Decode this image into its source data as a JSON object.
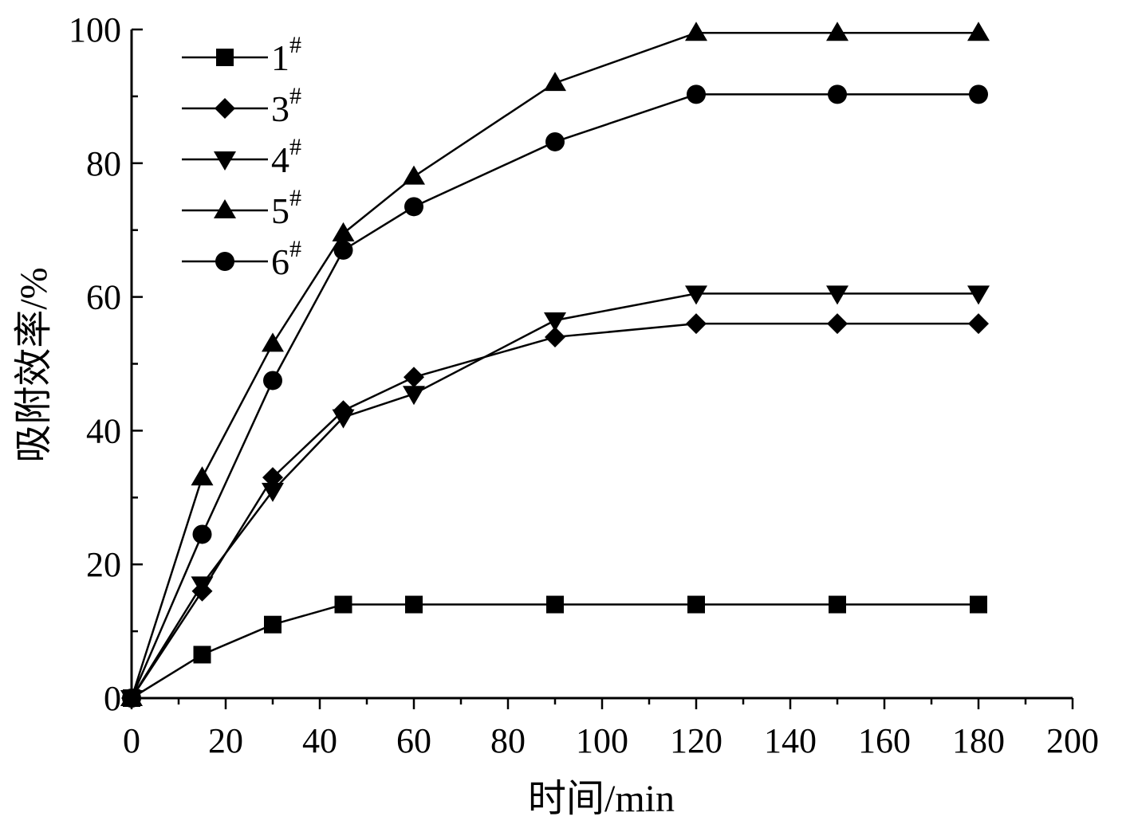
{
  "chart_data": {
    "type": "line",
    "xlabel": "时间/min",
    "ylabel": "吸附效率/%",
    "xlim": [
      0,
      200
    ],
    "ylim": [
      0,
      100
    ],
    "xticks": [
      "0",
      "20",
      "40",
      "60",
      "80",
      "100",
      "120",
      "140",
      "160",
      "180",
      "200"
    ],
    "yticks": [
      "0",
      "20",
      "40",
      "60",
      "80",
      "100"
    ],
    "grid": false,
    "legend_position": "top-left",
    "series": [
      {
        "name": "1",
        "sup": "#",
        "marker": "square",
        "x": [
          0,
          15,
          30,
          45,
          60,
          90,
          120,
          150,
          180
        ],
        "y": [
          0,
          6.5,
          11,
          14,
          14,
          14,
          14,
          14,
          14
        ]
      },
      {
        "name": "3",
        "sup": "#",
        "marker": "diamond",
        "x": [
          0,
          15,
          30,
          45,
          60,
          90,
          120,
          150,
          180
        ],
        "y": [
          0,
          16,
          33,
          43,
          48,
          54,
          56,
          56,
          56
        ]
      },
      {
        "name": "4",
        "sup": "#",
        "marker": "triangle-down",
        "x": [
          0,
          15,
          30,
          45,
          60,
          90,
          120,
          150,
          180
        ],
        "y": [
          0,
          17,
          31,
          42,
          45.5,
          56.5,
          60.5,
          60.5,
          60.5
        ]
      },
      {
        "name": "5",
        "sup": "#",
        "marker": "triangle-up",
        "x": [
          0,
          15,
          30,
          45,
          60,
          90,
          120,
          150,
          180
        ],
        "y": [
          0,
          33,
          53,
          69.5,
          78,
          92,
          99.5,
          99.5,
          99.5
        ]
      },
      {
        "name": "6",
        "sup": "#",
        "marker": "circle",
        "x": [
          0,
          15,
          30,
          45,
          60,
          90,
          120,
          150,
          180
        ],
        "y": [
          0,
          24.5,
          47.5,
          67,
          73.5,
          83.2,
          90.3,
          90.3,
          90.3
        ]
      }
    ]
  }
}
